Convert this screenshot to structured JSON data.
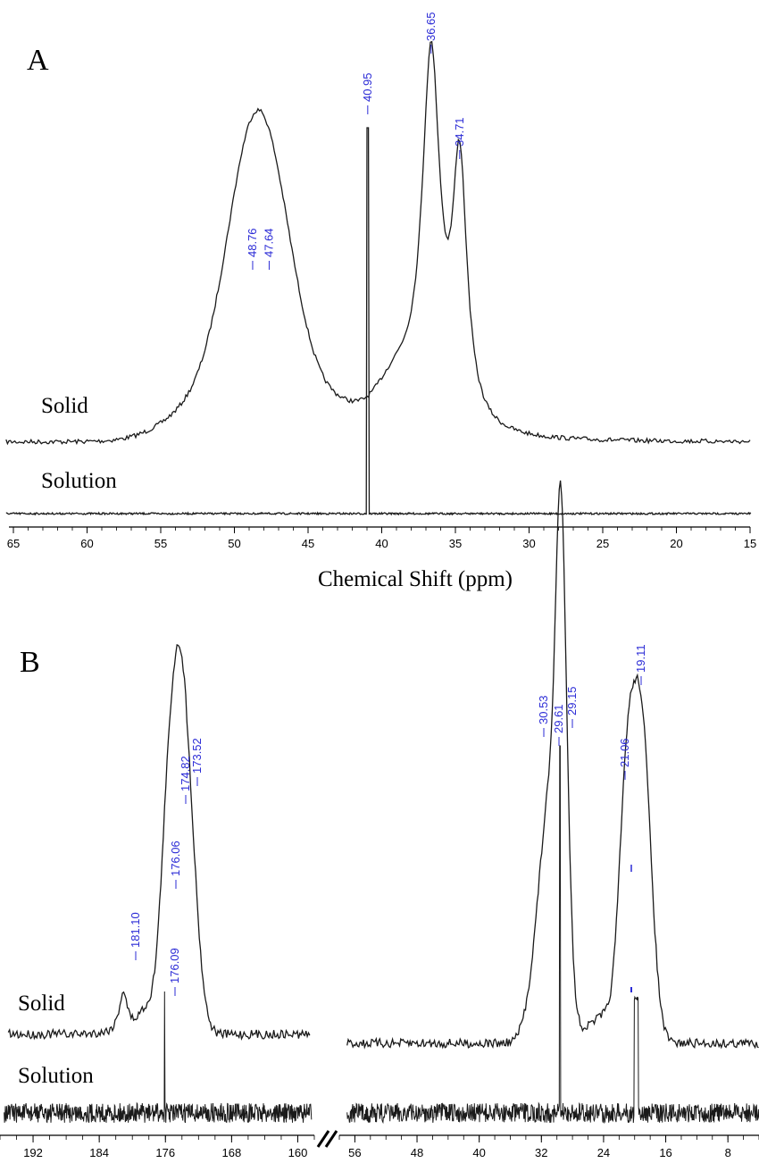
{
  "colors": {
    "trace": "#1a1a1a",
    "peak_label": "#2b2bd6",
    "axis": "#000000"
  },
  "chart_data": [
    {
      "panel": "A",
      "type": "line",
      "xlabel": "Chemical Shift (ppm)",
      "xlim": [
        65,
        15
      ],
      "x_ticks": [
        65,
        60,
        55,
        50,
        45,
        40,
        35,
        30,
        25,
        20,
        15
      ],
      "series": [
        {
          "name": "Solid",
          "peaks": [
            {
              "ppm": 48.76,
              "label": "48.76"
            },
            {
              "ppm": 47.64,
              "label": "47.64"
            },
            {
              "ppm": 36.65,
              "label": "36.65"
            },
            {
              "ppm": 34.71,
              "label": "34.71"
            }
          ]
        },
        {
          "name": "Solution",
          "peaks": [
            {
              "ppm": 40.95,
              "label": "40.95"
            }
          ]
        }
      ]
    },
    {
      "panel": "B",
      "type": "line",
      "xlabel": "",
      "axis_break": true,
      "xlim_left": [
        196,
        158
      ],
      "xlim_right": [
        58,
        4
      ],
      "x_ticks_left": [
        192,
        184,
        176,
        168,
        160
      ],
      "x_ticks_right": [
        56,
        48,
        40,
        32,
        24,
        16,
        8
      ],
      "series": [
        {
          "name": "Solid",
          "peaks": [
            {
              "ppm": 181.1,
              "label": "181.10"
            },
            {
              "ppm": 176.06,
              "label": "176.06"
            },
            {
              "ppm": 174.82,
              "label": "174.82"
            },
            {
              "ppm": 173.52,
              "label": "173.52"
            },
            {
              "ppm": 30.53,
              "label": "30.53"
            },
            {
              "ppm": 29.61,
              "label": "29.61"
            },
            {
              "ppm": 29.15,
              "label": "29.15"
            },
            {
              "ppm": 21.06,
              "label": "21.06"
            },
            {
              "ppm": 19.11,
              "label": "19.11"
            }
          ]
        },
        {
          "name": "Solution",
          "peaks": [
            {
              "ppm": 176.09,
              "label": "176.09"
            }
          ]
        }
      ]
    }
  ]
}
